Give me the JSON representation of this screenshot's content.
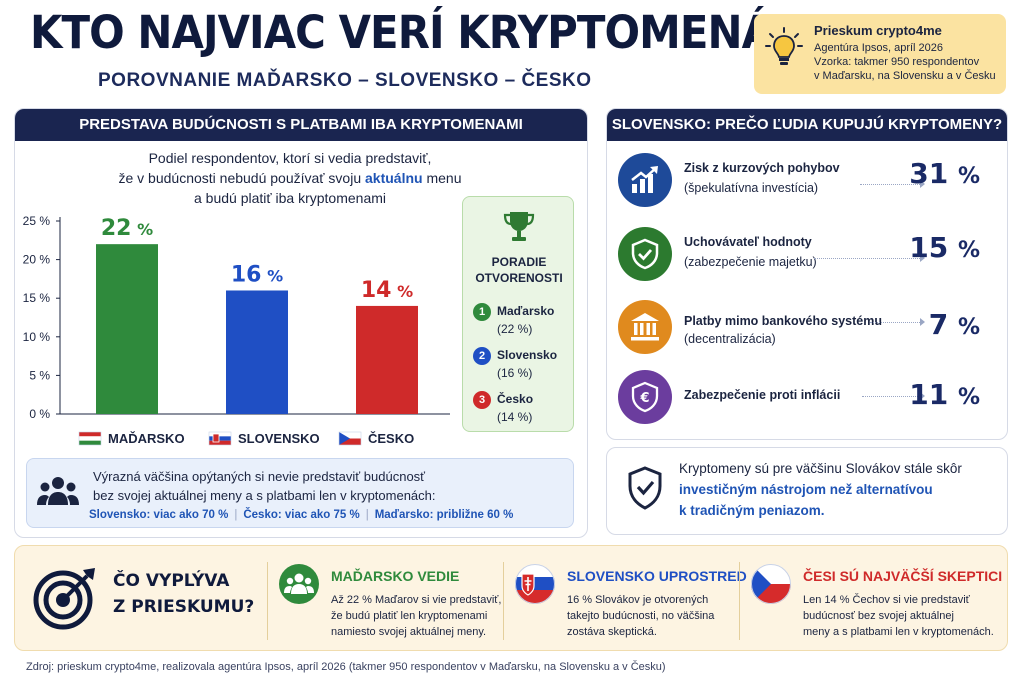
{
  "title": "KTO NAJVIAC VERÍ KRYPTOMENÁM?",
  "subtitle": "POROVNANIE MAĎARSKO – SLOVENSKO – ČESKO",
  "info": {
    "title": "Prieskum crypto4me",
    "lines": [
      "Agentúra Ipsos, apríl 2026",
      "Vzorka: takmer 950 respondentov",
      "v Maďarsku, na Slovensku a v Česku"
    ],
    "icon": "lightbulb-icon"
  },
  "left_panel": {
    "header": "PREDSTAVA BUDÚCNOSTI S PLATBAMI IBA KRYPTOMENAMI",
    "desc_line1": "Podiel respondentov, ktorí si vedia predstaviť,",
    "desc_line2a": "že v budúcnosti nebudú používať svoju ",
    "desc_line2b": "aktuálnu",
    "desc_line2c": " menu",
    "desc_line3": "a budú platiť iba kryptomenami"
  },
  "chart_data": {
    "type": "bar",
    "categories": [
      "MAĎARSKO",
      "SLOVENSKO",
      "ČESKO"
    ],
    "values": [
      22,
      16,
      14
    ],
    "value_labels": [
      "22 %",
      "16 %",
      "14 %"
    ],
    "colors": [
      "#2f8a3c",
      "#1f4fc4",
      "#cf2a2a"
    ],
    "ylim": [
      0,
      25
    ],
    "yticks": [
      0,
      5,
      10,
      15,
      20,
      25
    ],
    "ytick_labels": [
      "0 %",
      "5 %",
      "10 %",
      "15 %",
      "20 %",
      "25 %"
    ],
    "grid": false
  },
  "ranking": {
    "title1": "PORADIE",
    "title2": "OTVORENOSTI",
    "items": [
      {
        "num": "1",
        "name": "Maďarsko",
        "pct": "(22 %)",
        "color": "#2f8a3c"
      },
      {
        "num": "2",
        "name": "Slovensko",
        "pct": "(16 %)",
        "color": "#1f4fc4"
      },
      {
        "num": "3",
        "name": "Česko",
        "pct": "(14 %)",
        "color": "#cf2a2a"
      }
    ]
  },
  "note": {
    "line1": "Výrazná väčšina opýtaných si nevie predstaviť budúcnosť",
    "line2": "bez svojej aktuálnej meny a s platbami len v kryptomenách:",
    "stats": [
      "Slovensko: viac ako 70 %",
      "Česko: viac ako 75 %",
      "Maďarsko: približne 60 %"
    ]
  },
  "right_panel": {
    "header": "SLOVENSKO: PREČO ĽUDIA KUPUJÚ KRYPTOMENY?",
    "reasons": [
      {
        "label": "Zisk z kurzových pohybov",
        "sub": "(špekulatívna investícia)",
        "value": "31",
        "unit": "%",
        "icon": "growth-chart-icon",
        "color": "#1e4a99"
      },
      {
        "label": "Uchovávateľ hodnoty",
        "sub": "(zabezpečenie majetku)",
        "value": "15",
        "unit": "%",
        "icon": "shield-check-icon",
        "color": "#2c7a2f"
      },
      {
        "label": "Platby mimo bankového systému",
        "sub": "(decentralizácia)",
        "value": "7",
        "unit": "%",
        "icon": "bank-icon",
        "color": "#e08a1e"
      },
      {
        "label": "Zabezpečenie proti inflácii",
        "sub": "",
        "value": "11",
        "unit": "%",
        "icon": "euro-shield-icon",
        "color": "#6b3d9e"
      }
    ],
    "conclusion_line1": "Kryptomeny sú pre väčšinu Slovákov stále skôr",
    "conclusion_line2": "investičným nástrojom než alternatívou",
    "conclusion_line3": "k tradičným peniazom."
  },
  "bottom": {
    "title1": "ČO VYPLÝVA",
    "title2": "Z PRIESKUMU?",
    "cols": [
      {
        "head": "MAĎARSKO VEDIE",
        "color": "#2f8a3c",
        "lines": [
          "Až 22 % Maďarov si vie predstaviť,",
          "že budú platiť len kryptomenami",
          "namiesto svojej aktuálnej meny."
        ]
      },
      {
        "head": "SLOVENSKO UPROSTRED",
        "color": "#1f4fc4",
        "lines": [
          "16 % Slovákov je otvorených",
          "takejto budúcnosti, no väčšina",
          "zostáva skeptická."
        ]
      },
      {
        "head": "ČESI SÚ NAJVÄČŠÍ SKEPTICI",
        "color": "#cf2a2a",
        "lines": [
          "Len 14 % Čechov si vie predstaviť",
          "budúcnosť bez svojej aktuálnej",
          "meny a s platbami len v kryptomenách."
        ]
      }
    ]
  },
  "source": "Zdroj: prieskum crypto4me, realizovala agentúra Ipsos, apríl 2026 (takmer 950 respondentov v Maďarsku, na Slovensku a v Česku)"
}
